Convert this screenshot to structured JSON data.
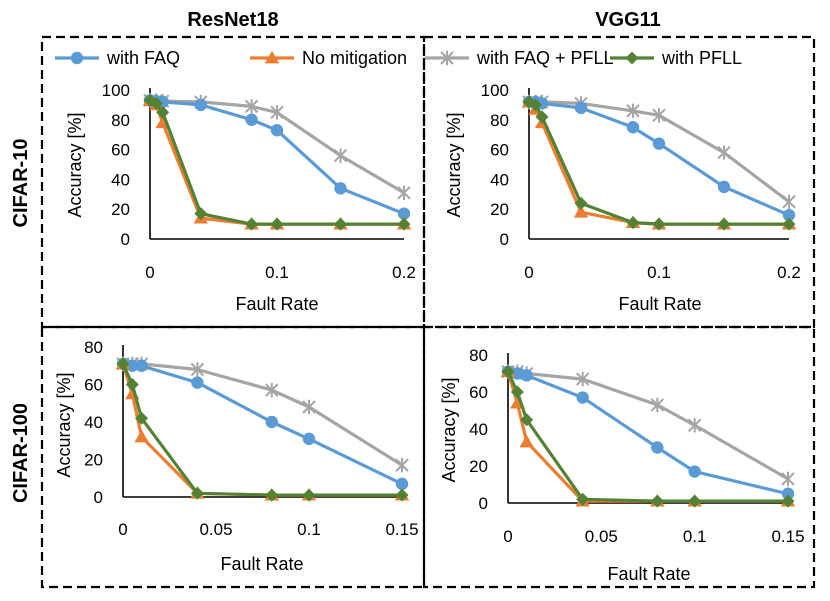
{
  "column_titles": [
    "ResNet18",
    "VGG11"
  ],
  "row_titles": [
    "CIFAR-10",
    "CIFAR-100"
  ],
  "legend": [
    {
      "name": "with FAQ",
      "color": "#5b9bd5",
      "marker": "circle"
    },
    {
      "name": "No mitigation",
      "color": "#ed7d31",
      "marker": "triangle"
    },
    {
      "name": "with FAQ + PFLL",
      "color": "#a5a5a5",
      "marker": "star"
    },
    {
      "name": "with PFLL",
      "color": "#548235",
      "marker": "diamond"
    }
  ],
  "chart_data": [
    {
      "type": "line",
      "title": "ResNet18 / CIFAR-10",
      "xlabel": "Fault Rate",
      "ylabel": "Accuracy [%]",
      "xlim": [
        0,
        0.2
      ],
      "ylim": [
        0,
        100
      ],
      "xticks": [
        0,
        0.1,
        0.2
      ],
      "xtick_labels": [
        "0",
        "0.1",
        "0.2"
      ],
      "yticks": [
        0,
        20,
        40,
        60,
        80,
        100
      ],
      "ytick_labels": [
        "0",
        "20",
        "40",
        "60",
        "80",
        "100"
      ],
      "series": [
        {
          "name": "with FAQ + PFLL",
          "x": [
            0,
            0.005,
            0.01,
            0.04,
            0.08,
            0.1,
            0.15,
            0.2
          ],
          "y": [
            93,
            93,
            92.5,
            92,
            89,
            85,
            56,
            31
          ]
        },
        {
          "name": "with FAQ",
          "x": [
            0,
            0.005,
            0.01,
            0.04,
            0.08,
            0.1,
            0.15,
            0.2
          ],
          "y": [
            93,
            92.5,
            92,
            90,
            80,
            73,
            34,
            17
          ]
        },
        {
          "name": "No mitigation",
          "x": [
            0,
            0.005,
            0.01,
            0.04,
            0.08,
            0.1,
            0.15,
            0.2
          ],
          "y": [
            93,
            90,
            78,
            14,
            10,
            10,
            10,
            10
          ]
        },
        {
          "name": "with PFLL",
          "x": [
            0,
            0.005,
            0.01,
            0.04,
            0.08,
            0.1,
            0.15,
            0.2
          ],
          "y": [
            93,
            91,
            85,
            17,
            10,
            10,
            10,
            10
          ]
        }
      ]
    },
    {
      "type": "line",
      "title": "VGG11 / CIFAR-10",
      "xlabel": "Fault Rate",
      "ylabel": "Accuracy [%]",
      "xlim": [
        0,
        0.2
      ],
      "ylim": [
        0,
        100
      ],
      "xticks": [
        0,
        0.1,
        0.2
      ],
      "xtick_labels": [
        "0",
        "0.1",
        "0.2"
      ],
      "yticks": [
        0,
        20,
        40,
        60,
        80,
        100
      ],
      "ytick_labels": [
        "0",
        "20",
        "40",
        "60",
        "80",
        "100"
      ],
      "series": [
        {
          "name": "with FAQ + PFLL",
          "x": [
            0,
            0.005,
            0.01,
            0.04,
            0.08,
            0.1,
            0.15,
            0.2
          ],
          "y": [
            92,
            92,
            92,
            91,
            86,
            83,
            58,
            25
          ]
        },
        {
          "name": "with FAQ",
          "x": [
            0,
            0.005,
            0.01,
            0.04,
            0.08,
            0.1,
            0.15,
            0.2
          ],
          "y": [
            92,
            92,
            91,
            88,
            75,
            64,
            35,
            16
          ]
        },
        {
          "name": "No mitigation",
          "x": [
            0,
            0.005,
            0.01,
            0.04,
            0.08,
            0.1,
            0.15,
            0.2
          ],
          "y": [
            92,
            87,
            78,
            18,
            11,
            10,
            10,
            10
          ]
        },
        {
          "name": "with PFLL",
          "x": [
            0,
            0.005,
            0.01,
            0.04,
            0.08,
            0.1,
            0.15,
            0.2
          ],
          "y": [
            92,
            90,
            82,
            24,
            11,
            10,
            10,
            10
          ]
        }
      ]
    },
    {
      "type": "line",
      "title": "ResNet18 / CIFAR-100",
      "xlabel": "Fault Rate",
      "ylabel": "Accuracy [%]",
      "xlim": [
        0,
        0.15
      ],
      "ylim": [
        0,
        80
      ],
      "xticks": [
        0,
        0.05,
        0.1,
        0.15
      ],
      "xtick_labels": [
        "0",
        "0.05",
        "0.1",
        "0.15"
      ],
      "yticks": [
        0,
        20,
        40,
        60,
        80
      ],
      "ytick_labels": [
        "0",
        "20",
        "40",
        "60",
        "80"
      ],
      "series": [
        {
          "name": "with FAQ + PFLL",
          "x": [
            0,
            0.005,
            0.01,
            0.04,
            0.08,
            0.1,
            0.15
          ],
          "y": [
            71,
            71,
            71,
            68,
            57,
            48,
            17
          ]
        },
        {
          "name": "with FAQ",
          "x": [
            0,
            0.005,
            0.01,
            0.04,
            0.08,
            0.1,
            0.15
          ],
          "y": [
            71,
            70,
            70,
            61,
            40,
            31,
            7
          ]
        },
        {
          "name": "No mitigation",
          "x": [
            0,
            0.005,
            0.01,
            0.04,
            0.08,
            0.1,
            0.15
          ],
          "y": [
            71,
            55,
            32,
            2,
            1,
            1,
            1
          ]
        },
        {
          "name": "with PFLL",
          "x": [
            0,
            0.005,
            0.01,
            0.04,
            0.08,
            0.1,
            0.15
          ],
          "y": [
            71,
            60,
            42,
            2,
            1,
            1,
            1
          ]
        }
      ]
    },
    {
      "type": "line",
      "title": "VGG11 / CIFAR-100",
      "xlabel": "Fault Rate",
      "ylabel": "Accuracy [%]",
      "xlim": [
        0,
        0.15
      ],
      "ylim": [
        0,
        80
      ],
      "xticks": [
        0,
        0.05,
        0.1,
        0.15
      ],
      "xtick_labels": [
        "0",
        "0.05",
        "0.1",
        "0.15"
      ],
      "yticks": [
        0,
        20,
        40,
        60,
        80
      ],
      "ytick_labels": [
        "0",
        "20",
        "40",
        "60",
        "80"
      ],
      "series": [
        {
          "name": "with FAQ + PFLL",
          "x": [
            0,
            0.005,
            0.01,
            0.04,
            0.08,
            0.1,
            0.15
          ],
          "y": [
            71,
            71,
            70,
            67,
            53,
            42,
            13
          ]
        },
        {
          "name": "with FAQ",
          "x": [
            0,
            0.005,
            0.01,
            0.04,
            0.08,
            0.1,
            0.15
          ],
          "y": [
            71,
            70,
            69,
            57,
            30,
            17,
            5
          ]
        },
        {
          "name": "No mitigation",
          "x": [
            0,
            0.005,
            0.01,
            0.04,
            0.08,
            0.1,
            0.15
          ],
          "y": [
            71,
            54,
            33,
            1,
            1,
            1,
            1
          ]
        },
        {
          "name": "with PFLL",
          "x": [
            0,
            0.005,
            0.01,
            0.04,
            0.08,
            0.1,
            0.15
          ],
          "y": [
            71,
            60,
            45,
            2,
            1,
            1,
            1
          ]
        }
      ]
    }
  ]
}
